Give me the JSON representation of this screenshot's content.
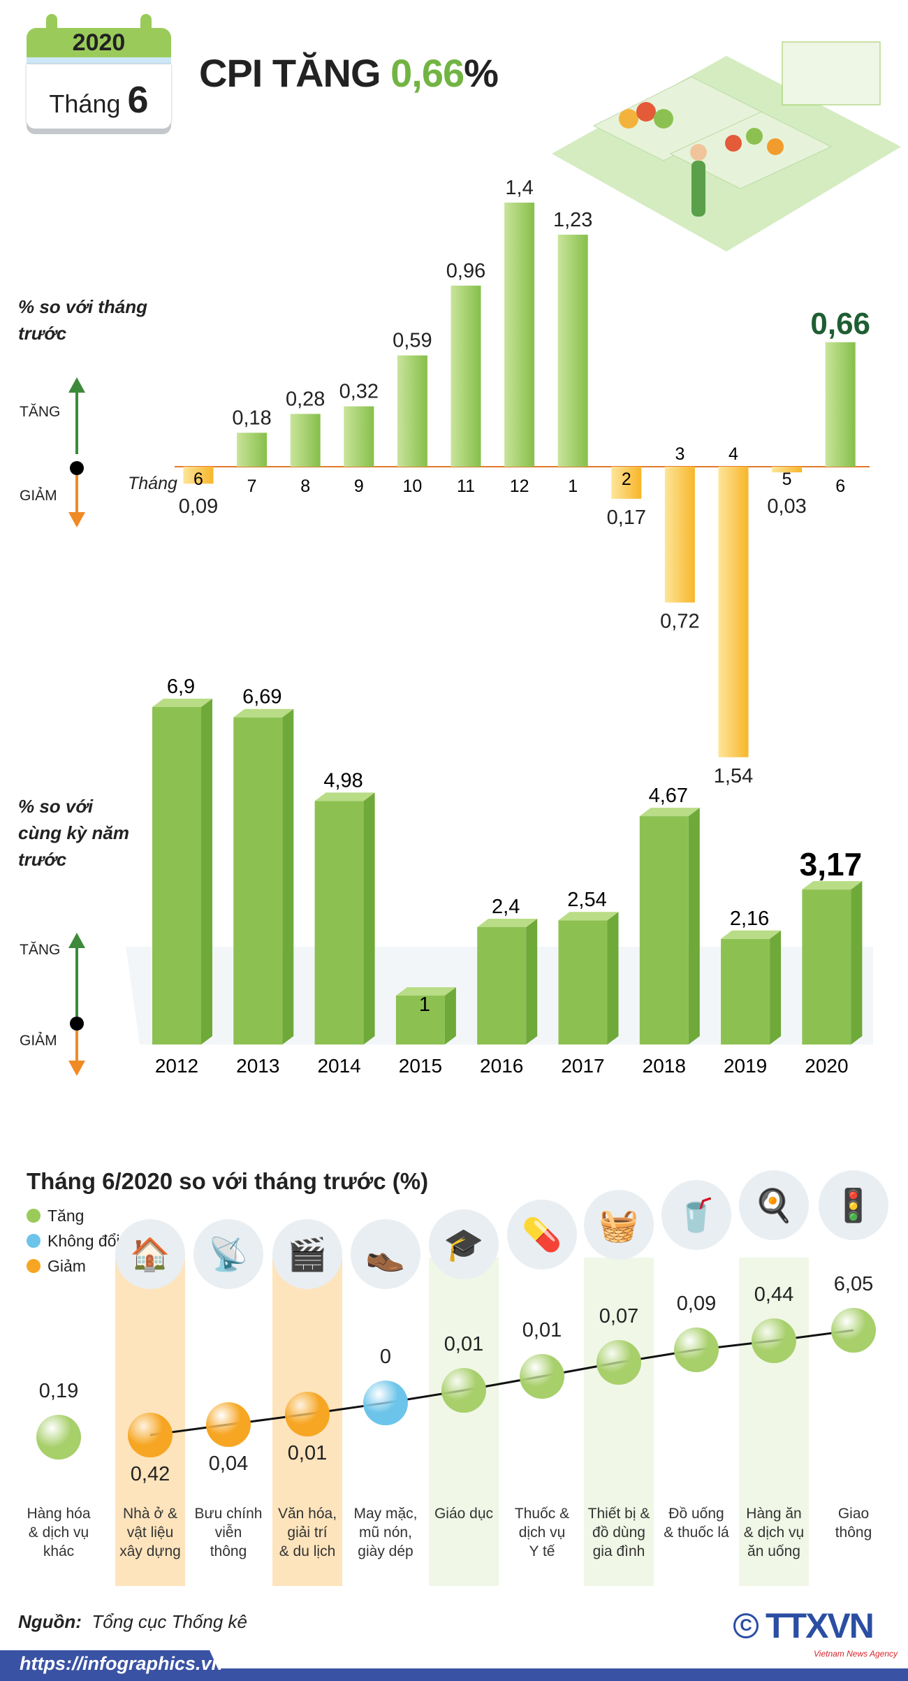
{
  "header": {
    "year": "2020",
    "month_label": "Tháng",
    "month": "6",
    "title_prefix": "CPI TĂNG",
    "title_value": "0,66",
    "title_suffix": "%"
  },
  "chart_data": [
    {
      "type": "bar",
      "title": "% so với tháng trước",
      "xlabel": "Tháng",
      "up_label": "TĂNG",
      "down_label": "GIẢM",
      "categories": [
        "6",
        "7",
        "8",
        "9",
        "10",
        "11",
        "12",
        "1",
        "2",
        "3",
        "4",
        "5",
        "6"
      ],
      "values": [
        -0.09,
        0.18,
        0.28,
        0.32,
        0.59,
        0.96,
        1.4,
        1.23,
        -0.17,
        -0.72,
        -1.54,
        -0.03,
        0.66
      ],
      "labels": [
        "0,09",
        "0,18",
        "0,28",
        "0,32",
        "0,59",
        "0,96",
        "1,4",
        "1,23",
        "0,17",
        "0,72",
        "1,54",
        "0,03",
        "0,66"
      ],
      "colors": {
        "positive": "#9acb5a",
        "negative": "#fbbf2e",
        "highlight": "#1e5e32"
      }
    },
    {
      "type": "bar",
      "title": "% so với cùng kỳ năm trước",
      "up_label": "TĂNG",
      "down_label": "GIẢM",
      "categories": [
        "2012",
        "2013",
        "2014",
        "2015",
        "2016",
        "2017",
        "2018",
        "2019",
        "2020"
      ],
      "values": [
        6.9,
        6.69,
        4.98,
        1,
        2.4,
        2.54,
        4.67,
        2.16,
        3.17
      ],
      "labels": [
        "6,9",
        "6,69",
        "4,98",
        "1",
        "2,4",
        "2,54",
        "4,67",
        "2,16",
        "3,17"
      ]
    },
    {
      "type": "scatter",
      "title": "Tháng 6/2020 so với tháng trước (%)",
      "legend": [
        {
          "label": "Tăng",
          "color": "#9acb5a"
        },
        {
          "label": "Không đổi",
          "color": "#6cc4ea"
        },
        {
          "label": "Giảm",
          "color": "#f6a623"
        }
      ],
      "categories": [
        {
          "name": "Hàng hóa & dịch vụ khác",
          "lines": [
            "Hàng hóa",
            "& dịch vụ",
            "khác"
          ],
          "value": "0,19",
          "status": "up",
          "icon": ""
        },
        {
          "name": "Nhà ở & vật liệu xây dựng",
          "lines": [
            "Nhà ở &",
            "vật liệu",
            "xây dựng"
          ],
          "value": "0,42",
          "status": "down",
          "icon": "house-icon",
          "glyph": "🏠",
          "highlight": "orange"
        },
        {
          "name": "Bưu chính viễn thông",
          "lines": [
            "Bưu chính",
            "viễn",
            "thông"
          ],
          "value": "0,04",
          "status": "down",
          "icon": "antenna-icon",
          "glyph": "📡"
        },
        {
          "name": "Văn hóa, giải trí & du lịch",
          "lines": [
            "Văn hóa,",
            "giải trí",
            "& du lịch"
          ],
          "value": "0,01",
          "status": "down",
          "icon": "clapperboard-icon",
          "glyph": "🎬",
          "highlight": "orange"
        },
        {
          "name": "May mặc, mũ nón, giày dép",
          "lines": [
            "May mặc,",
            "mũ nón,",
            "giày dép"
          ],
          "value": "0",
          "status": "flat",
          "icon": "clothes-icon",
          "glyph": "👞"
        },
        {
          "name": "Giáo dục",
          "lines": [
            "Giáo dục"
          ],
          "value": "0,01",
          "status": "up",
          "icon": "graduation-cap-icon",
          "glyph": "🎓",
          "highlight": "green"
        },
        {
          "name": "Thuốc & dịch vụ Y tế",
          "lines": [
            "Thuốc &",
            "dịch vụ",
            "Y tế"
          ],
          "value": "0,01",
          "status": "up",
          "icon": "pill-icon",
          "glyph": "💊"
        },
        {
          "name": "Thiết bị & đồ dùng gia đình",
          "lines": [
            "Thiết bị &",
            "đồ dùng",
            "gia đình"
          ],
          "value": "0,07",
          "status": "up",
          "icon": "washing-machine-icon",
          "glyph": "🧺",
          "highlight": "green"
        },
        {
          "name": "Đồ uống & thuốc lá",
          "lines": [
            "Đồ uống",
            "& thuốc lá"
          ],
          "value": "0,09",
          "status": "up",
          "icon": "drink-icon",
          "glyph": "🥤"
        },
        {
          "name": "Hàng ăn & dịch vụ ăn uống",
          "lines": [
            "Hàng ăn",
            "& dịch vụ",
            "ăn uống"
          ],
          "value": "0,44",
          "status": "up",
          "icon": "food-icon",
          "glyph": "🍳",
          "highlight": "green"
        },
        {
          "name": "Giao thông",
          "lines": [
            "Giao",
            "thông"
          ],
          "value": "6,05",
          "status": "up",
          "icon": "traffic-light-icon",
          "glyph": "🚦"
        }
      ]
    }
  ],
  "footer": {
    "source_label": "Nguồn:",
    "source": "Tổng cục Thống kê",
    "url": "https://infographics.vn",
    "logo": "TTXVN",
    "logo_sub": "Vietnam News Agency"
  }
}
